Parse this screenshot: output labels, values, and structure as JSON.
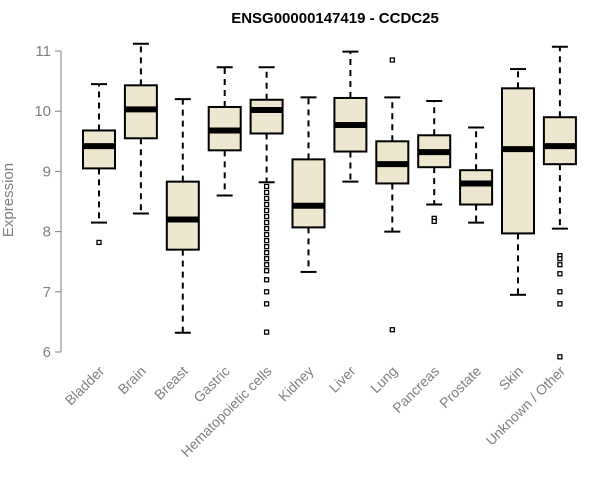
{
  "chart_data": {
    "type": "boxplot",
    "title": "ENSG00000147419 - CCDC25",
    "xlabel": "",
    "ylabel": "Expression",
    "ylim": [
      5.8,
      11.2
    ],
    "yticks": [
      6,
      7,
      8,
      9,
      10,
      11
    ],
    "grid": false,
    "colors": {
      "box_fill": "#ede7cf",
      "stroke": "#000000",
      "axis": "#808080"
    },
    "categories": [
      "Bladder",
      "Brain",
      "Breast",
      "Gastric",
      "Hematopoietic cells",
      "Kidney",
      "Liver",
      "Lung",
      "Pancreas",
      "Prostate",
      "Skin",
      "Unknown / Other"
    ],
    "boxes": [
      {
        "name": "Bladder",
        "whisker_low": 8.15,
        "q1": 9.05,
        "median": 9.42,
        "q3": 9.68,
        "whisker_high": 10.45,
        "outliers": [
          7.82
        ]
      },
      {
        "name": "Brain",
        "whisker_low": 8.3,
        "q1": 9.55,
        "median": 10.03,
        "q3": 10.43,
        "whisker_high": 11.12,
        "outliers": []
      },
      {
        "name": "Breast",
        "whisker_low": 6.32,
        "q1": 7.7,
        "median": 8.2,
        "q3": 8.83,
        "whisker_high": 10.2,
        "outliers": []
      },
      {
        "name": "Gastric",
        "whisker_low": 8.6,
        "q1": 9.35,
        "median": 9.68,
        "q3": 10.07,
        "whisker_high": 10.73,
        "outliers": []
      },
      {
        "name": "Hematopoietic cells",
        "whisker_low": 8.82,
        "q1": 9.63,
        "median": 10.02,
        "q3": 10.19,
        "whisker_high": 10.73,
        "outliers": [
          8.75,
          8.65,
          8.55,
          8.45,
          8.35,
          8.25,
          8.15,
          8.05,
          7.95,
          7.85,
          7.75,
          7.65,
          7.55,
          7.45,
          7.35,
          7.2,
          7.0,
          6.8,
          6.33
        ]
      },
      {
        "name": "Kidney",
        "whisker_low": 7.33,
        "q1": 8.07,
        "median": 8.43,
        "q3": 9.2,
        "whisker_high": 10.23,
        "outliers": []
      },
      {
        "name": "Liver",
        "whisker_low": 8.83,
        "q1": 9.33,
        "median": 9.77,
        "q3": 10.22,
        "whisker_high": 10.99,
        "outliers": []
      },
      {
        "name": "Lung",
        "whisker_low": 8.0,
        "q1": 8.8,
        "median": 9.12,
        "q3": 9.5,
        "whisker_high": 10.23,
        "outliers": [
          10.85,
          6.37
        ]
      },
      {
        "name": "Pancreas",
        "whisker_low": 8.45,
        "q1": 9.07,
        "median": 9.32,
        "q3": 9.6,
        "whisker_high": 10.17,
        "outliers": [
          8.22,
          8.17
        ]
      },
      {
        "name": "Prostate",
        "whisker_low": 8.15,
        "q1": 8.45,
        "median": 8.8,
        "q3": 9.02,
        "whisker_high": 9.73,
        "outliers": []
      },
      {
        "name": "Skin",
        "whisker_low": 6.95,
        "q1": 7.97,
        "median": 9.37,
        "q3": 10.38,
        "whisker_high": 10.7,
        "outliers": []
      },
      {
        "name": "Unknown / Other",
        "whisker_low": 8.05,
        "q1": 9.12,
        "median": 9.42,
        "q3": 9.9,
        "whisker_high": 11.07,
        "outliers": [
          7.6,
          7.55,
          7.45,
          7.3,
          7.0,
          6.8,
          5.92
        ]
      }
    ]
  }
}
